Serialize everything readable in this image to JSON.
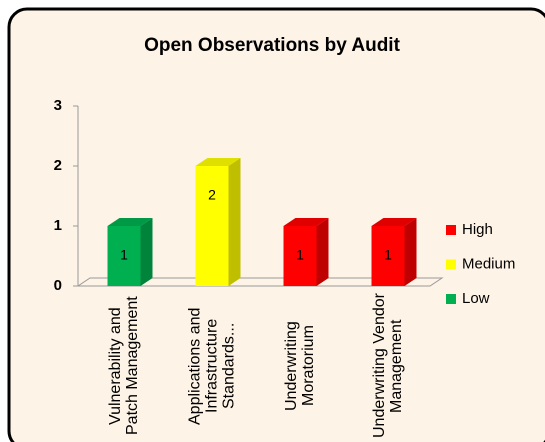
{
  "chart_data": {
    "type": "bar3d",
    "title": "Open Observations by Audit",
    "categories": [
      "Vulnerability and Patch Management",
      "Applications and Infrastructure Standards...",
      "Underwriting Moratorium",
      "Underwriting Vendor Management"
    ],
    "series": [
      {
        "name": "High",
        "color": "#ff0000",
        "values": [
          null,
          null,
          1,
          1
        ]
      },
      {
        "name": "Medium",
        "color": "#ffff00",
        "values": [
          null,
          2,
          null,
          null
        ]
      },
      {
        "name": "Low",
        "color": "#00b050",
        "values": [
          1,
          null,
          null,
          null
        ]
      }
    ],
    "ylim": [
      0,
      3
    ],
    "yticks": [
      0,
      1,
      2,
      3
    ],
    "legend": "right"
  }
}
